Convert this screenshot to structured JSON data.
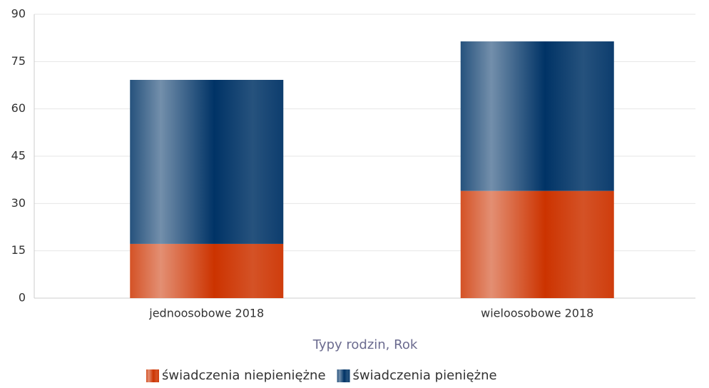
{
  "chart_data": {
    "type": "stacked_bar",
    "categories": [
      "jednoosobowe 2018",
      "wieloosobowe 2018"
    ],
    "series": [
      {
        "name": "świadczenia niepieniężne",
        "color": "#cc3300",
        "values": [
          17.2,
          34.0
        ]
      },
      {
        "name": "świadczenia pieniężne",
        "color": "#003366",
        "values": [
          52.0,
          47.4
        ]
      }
    ],
    "x_label": "Typy rodzin, Rok",
    "ylim": [
      0,
      90
    ],
    "yticks": [
      0,
      15,
      30,
      45,
      60,
      75,
      90
    ],
    "grid": true
  }
}
